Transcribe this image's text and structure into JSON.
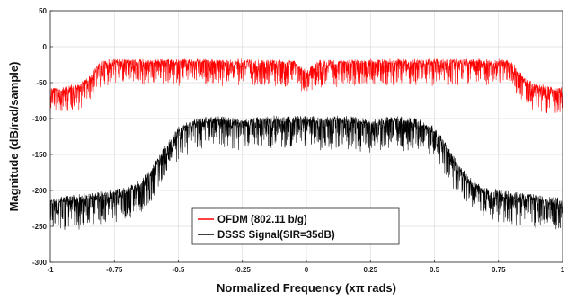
{
  "chart_data": {
    "type": "line",
    "title": "",
    "xlabel": "Normalized Frequency (xπ rads)",
    "ylabel": "Magnitude (dB/rad/sample)",
    "xlim": [
      -1,
      1
    ],
    "ylim": [
      -300,
      50
    ],
    "x_ticks": [
      -1,
      -0.75,
      -0.5,
      -0.25,
      0,
      0.25,
      0.5,
      0.75,
      1
    ],
    "x_tick_labels": [
      "-1",
      "-0.75",
      "-0.5",
      "-0.25",
      "0",
      "0.25",
      "0.5",
      "0.75",
      "1"
    ],
    "y_ticks": [
      50,
      0,
      -50,
      -100,
      -150,
      -200,
      -250,
      -300
    ],
    "y_tick_labels": [
      "50",
      "0",
      "-50",
      "-100",
      "-150",
      "-200",
      "-250",
      "-300"
    ],
    "grid": true,
    "legend_position": "bottom-center",
    "series": [
      {
        "name": "OFDM (802.11 b/g)",
        "color": "#ff0000",
        "x": [
          -1,
          -0.95,
          -0.9,
          -0.85,
          -0.82,
          -0.8,
          -0.75,
          -0.5,
          -0.25,
          -0.05,
          0,
          0.05,
          0.25,
          0.5,
          0.75,
          0.8,
          0.82,
          0.85,
          0.9,
          0.95,
          1
        ],
        "y": [
          -60,
          -58,
          -55,
          -45,
          -30,
          -22,
          -20,
          -20,
          -20,
          -22,
          -35,
          -22,
          -20,
          -20,
          -20,
          -22,
          -30,
          -45,
          -55,
          -58,
          -60
        ]
      },
      {
        "name": "DSSS Signal(SIR=35dB)",
        "color": "#000000",
        "x": [
          -1,
          -0.9,
          -0.8,
          -0.7,
          -0.65,
          -0.6,
          -0.55,
          -0.5,
          -0.45,
          -0.35,
          -0.25,
          -0.15,
          0,
          0.15,
          0.25,
          0.35,
          0.45,
          0.5,
          0.55,
          0.6,
          0.65,
          0.7,
          0.8,
          0.9,
          1
        ],
        "y": [
          -215,
          -210,
          -205,
          -200,
          -190,
          -170,
          -140,
          -115,
          -105,
          -100,
          -105,
          -100,
          -100,
          -100,
          -105,
          -100,
          -105,
          -115,
          -140,
          -170,
          -190,
          -200,
          -205,
          -210,
          -215
        ]
      }
    ]
  }
}
